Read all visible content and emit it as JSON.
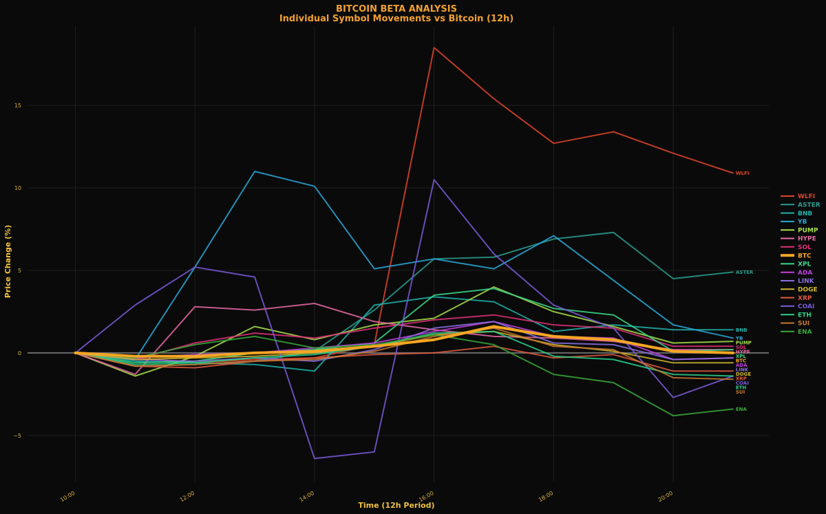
{
  "chart_data": {
    "type": "line",
    "title": "BITCOIN BETA ANALYSIS",
    "subtitle": "Individual Symbol Movements vs Bitcoin (12h)",
    "xlabel": "Time (12h Period)",
    "ylabel": "Price Change (%)",
    "x": [
      0,
      1,
      2,
      3,
      4,
      5,
      6,
      7,
      8,
      9,
      10,
      11
    ],
    "x_ticks": [
      {
        "x": 0,
        "label": "10:00"
      },
      {
        "x": 2,
        "label": "12:00"
      },
      {
        "x": 4,
        "label": "14:00"
      },
      {
        "x": 6,
        "label": "16:00"
      },
      {
        "x": 8,
        "label": "18:00"
      },
      {
        "x": 10,
        "label": "20:00"
      }
    ],
    "y_ticks": [
      -5,
      0,
      5,
      10,
      15
    ],
    "y_tick_labels": [
      "−5",
      "0",
      "5",
      "10",
      "15"
    ],
    "xlim": [
      -0.8,
      11.6
    ],
    "ylim": [
      -7.8,
      19.8
    ],
    "grid": true,
    "legend": "right",
    "series": [
      {
        "name": "WLFI",
        "label": "WLFI",
        "color": "#e0452a",
        "values": [
          0,
          -0.3,
          -0.6,
          -0.4,
          -0.3,
          0.5,
          18.5,
          15.4,
          12.7,
          13.4,
          12.1,
          10.9
        ]
      },
      {
        "name": "ASTER",
        "label": "ASTER",
        "color": "#2a9d8f",
        "values": [
          0,
          -0.8,
          -0.7,
          -0.5,
          0.1,
          2.6,
          5.7,
          5.8,
          6.9,
          7.3,
          4.5,
          4.9
        ]
      },
      {
        "name": "BNB",
        "label": "BNB",
        "color": "#20b2aa",
        "values": [
          0,
          -0.5,
          -0.6,
          -0.7,
          -1.1,
          2.9,
          3.4,
          3.1,
          1.3,
          1.7,
          1.4,
          1.4
        ]
      },
      {
        "name": "YB",
        "label": "YB",
        "color": "#2aa8d8",
        "values": [
          0,
          -0.4,
          5.2,
          11.0,
          10.1,
          5.1,
          5.7,
          5.1,
          7.1,
          4.4,
          1.7,
          0.9
        ]
      },
      {
        "name": "PUMP",
        "label": "PUMP",
        "color": "#a8e04a",
        "values": [
          0,
          -1.4,
          -0.2,
          1.6,
          0.8,
          1.7,
          2.1,
          4.0,
          2.5,
          1.6,
          0.6,
          0.7
        ]
      },
      {
        "name": "HYPE",
        "label": "HYPE",
        "color": "#e86aa6",
        "values": [
          0,
          -1.3,
          2.8,
          2.6,
          3.0,
          1.9,
          1.4,
          1.0,
          0.9,
          0.7,
          0.2,
          0.2
        ]
      },
      {
        "name": "SOL",
        "label": "SOL",
        "color": "#e0307a",
        "values": [
          0,
          -0.4,
          0.6,
          1.2,
          0.9,
          1.5,
          2.0,
          2.3,
          1.7,
          1.5,
          0.4,
          0.4
        ]
      },
      {
        "name": "BTC",
        "label": "BTC",
        "color": "#f5a623",
        "width": 4,
        "values": [
          0,
          -0.2,
          -0.2,
          0.0,
          0.1,
          0.4,
          0.8,
          1.6,
          1.0,
          0.8,
          0.1,
          0.0
        ]
      },
      {
        "name": "XPL",
        "label": "XPL",
        "color": "#3ad98a",
        "values": [
          0,
          -0.6,
          -0.5,
          0.0,
          0.2,
          0.6,
          3.5,
          3.9,
          2.7,
          2.3,
          0.1,
          0.2
        ]
      },
      {
        "name": "ADA",
        "label": "ADA",
        "color": "#c040e0",
        "values": [
          0,
          -0.3,
          -0.1,
          0.0,
          0.3,
          0.6,
          1.3,
          1.9,
          1.0,
          0.9,
          -0.4,
          -0.3
        ]
      },
      {
        "name": "LINK",
        "label": "LINK",
        "color": "#8a70e0",
        "values": [
          0,
          -0.4,
          -0.5,
          -0.3,
          -0.5,
          0.2,
          1.5,
          1.9,
          0.6,
          0.5,
          -0.4,
          -0.3
        ]
      },
      {
        "name": "DOGE",
        "label": "DOGE",
        "color": "#d4b830",
        "values": [
          0,
          -0.4,
          -0.3,
          -0.2,
          0.0,
          0.4,
          1.1,
          1.3,
          0.5,
          0.1,
          -0.6,
          -0.6
        ]
      },
      {
        "name": "XRP",
        "label": "XRP",
        "color": "#e05a40",
        "values": [
          0,
          -0.8,
          -0.9,
          -0.5,
          -0.3,
          -0.1,
          0.0,
          0.4,
          -0.3,
          -0.1,
          -1.1,
          -1.1
        ]
      },
      {
        "name": "COAI",
        "label": "COAI",
        "color": "#7a5ad8",
        "values": [
          0,
          2.9,
          5.2,
          4.6,
          -6.4,
          -6.0,
          10.5,
          6.0,
          2.9,
          1.5,
          -2.7,
          -1.4
        ]
      },
      {
        "name": "ETH",
        "label": "ETH",
        "color": "#2ad08a",
        "values": [
          0,
          -0.7,
          -0.6,
          -0.3,
          -0.1,
          0.4,
          1.2,
          1.3,
          -0.2,
          -0.4,
          -1.3,
          -1.4
        ]
      },
      {
        "name": "SUI",
        "label": "SUI",
        "color": "#c87a30",
        "values": [
          0,
          -0.8,
          -0.7,
          -0.5,
          -0.4,
          0.1,
          1.0,
          1.5,
          0.4,
          0.2,
          -1.5,
          -1.6
        ]
      },
      {
        "name": "ENA",
        "label": "ENA",
        "color": "#3aa83a",
        "values": [
          0,
          -0.3,
          0.5,
          1.0,
          0.3,
          0.5,
          1.1,
          0.5,
          -1.3,
          -1.8,
          -3.8,
          -3.4
        ]
      }
    ]
  }
}
